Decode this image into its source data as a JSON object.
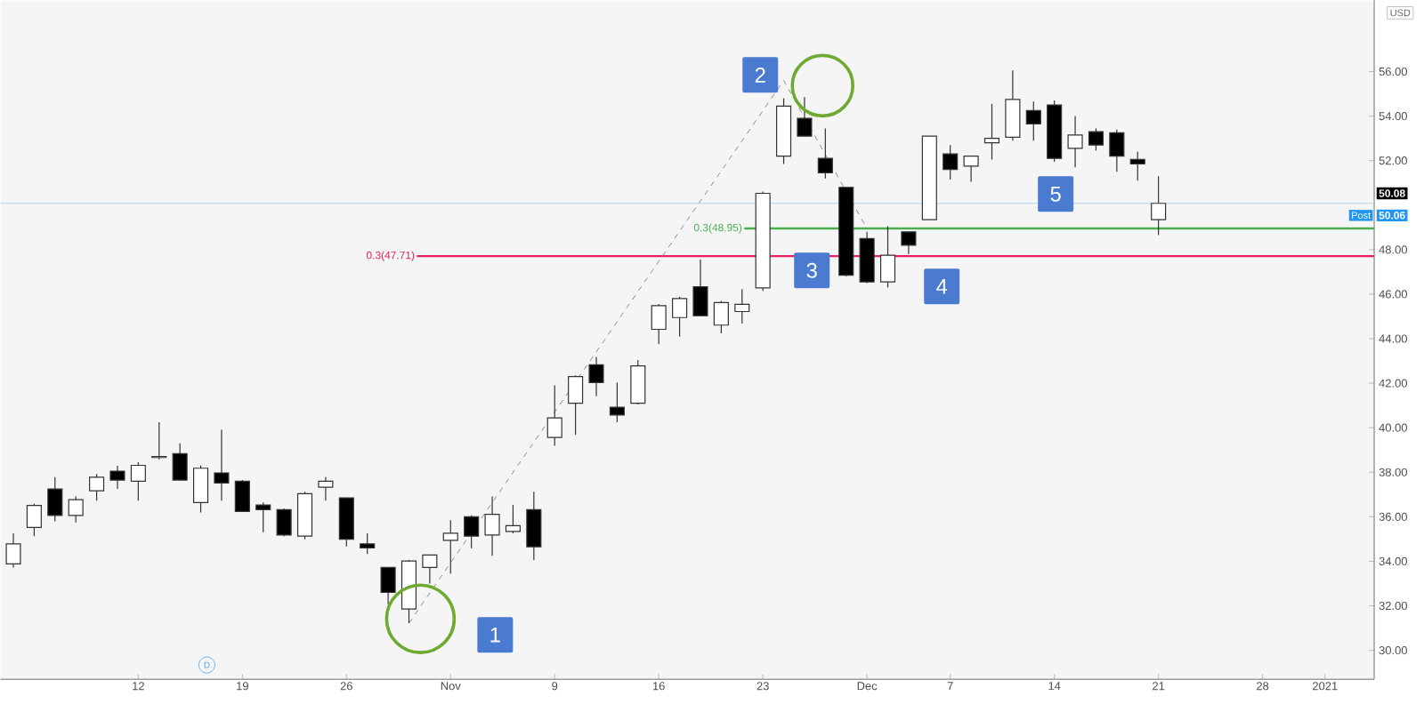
{
  "chart_data": {
    "type": "candlestick",
    "categories": [
      null,
      null,
      null,
      null,
      null,
      null,
      "12",
      null,
      null,
      null,
      null,
      "19",
      null,
      null,
      null,
      null,
      "26",
      null,
      null,
      null,
      null,
      "Nov",
      null,
      null,
      null,
      null,
      "9",
      null,
      null,
      null,
      null,
      "16",
      null,
      null,
      null,
      null,
      "23",
      null,
      null,
      null,
      null,
      "Dec",
      null,
      null,
      null,
      "7",
      null,
      null,
      null,
      null,
      "14",
      null,
      null,
      null,
      null,
      "21",
      null,
      null,
      null,
      null,
      "28",
      null,
      null,
      "2021",
      null,
      null
    ],
    "ohlc": [
      [
        33.88,
        35.26,
        33.72,
        34.78
      ],
      [
        35.52,
        36.59,
        35.13,
        36.51
      ],
      [
        37.25,
        37.78,
        35.79,
        36.06
      ],
      [
        36.06,
        36.91,
        35.74,
        36.77
      ],
      [
        37.17,
        37.92,
        36.72,
        37.78
      ],
      [
        38.05,
        38.29,
        37.25,
        37.65
      ],
      [
        37.6,
        38.45,
        36.72,
        38.31
      ],
      [
        38.66,
        40.25,
        38.58,
        38.71
      ],
      [
        38.84,
        39.3,
        37.65,
        37.65
      ],
      [
        36.64,
        38.31,
        36.19,
        38.18
      ],
      [
        37.97,
        39.91,
        36.72,
        37.52
      ],
      [
        37.6,
        37.65,
        36.24,
        36.24
      ],
      [
        36.53,
        36.64,
        35.31,
        36.32
      ],
      [
        36.32,
        36.37,
        35.13,
        35.18
      ],
      [
        35.13,
        37.12,
        34.99,
        37.04
      ],
      [
        37.33,
        37.78,
        36.72,
        37.6
      ],
      [
        36.85,
        36.85,
        34.67,
        34.99
      ],
      [
        34.78,
        35.26,
        34.33,
        34.6
      ],
      [
        33.72,
        33.72,
        32.07,
        32.6
      ],
      [
        31.86,
        34.06,
        31.22,
        34.01
      ],
      [
        33.72,
        34.28,
        33.0,
        34.28
      ],
      [
        34.94,
        35.84,
        33.45,
        35.26
      ],
      [
        36.0,
        36.06,
        34.59,
        35.13
      ],
      [
        35.18,
        36.91,
        34.25,
        36.11
      ],
      [
        35.34,
        36.53,
        35.26,
        35.6
      ],
      [
        36.32,
        37.12,
        34.06,
        34.65
      ],
      [
        39.56,
        41.9,
        39.19,
        40.44
      ],
      [
        41.1,
        42.35,
        39.69,
        42.3
      ],
      [
        42.83,
        43.17,
        41.42,
        42.03
      ],
      [
        40.92,
        42.03,
        40.25,
        40.57
      ],
      [
        41.1,
        43.04,
        41.05,
        42.78
      ],
      [
        44.42,
        45.56,
        43.76,
        45.48
      ],
      [
        44.95,
        45.88,
        44.1,
        45.8
      ],
      [
        46.33,
        47.56,
        45.01,
        45.03
      ],
      [
        44.61,
        45.7,
        44.24,
        45.62
      ],
      [
        45.22,
        46.23,
        44.69,
        45.54
      ],
      [
        46.28,
        50.61,
        46.15,
        50.53
      ],
      [
        52.2,
        54.8,
        51.85,
        54.45
      ],
      [
        53.9,
        54.85,
        53.1,
        53.1
      ],
      [
        52.1,
        53.45,
        51.2,
        51.45
      ],
      [
        50.8,
        50.8,
        46.8,
        46.85
      ],
      [
        48.5,
        48.8,
        46.5,
        46.55
      ],
      [
        46.55,
        49.05,
        46.3,
        47.75
      ],
      [
        48.8,
        48.8,
        47.8,
        48.2
      ],
      [
        49.35,
        53.1,
        49.35,
        53.1
      ],
      [
        52.3,
        52.7,
        51.15,
        51.6
      ],
      [
        51.75,
        52.2,
        51.05,
        52.2
      ],
      [
        52.8,
        54.55,
        52.05,
        53.0
      ],
      [
        53.05,
        56.05,
        52.9,
        54.75
      ],
      [
        54.25,
        54.65,
        52.9,
        53.65
      ],
      [
        54.5,
        54.7,
        51.95,
        52.1
      ],
      [
        52.55,
        54.0,
        51.7,
        53.15
      ],
      [
        53.3,
        53.45,
        52.45,
        52.7
      ],
      [
        53.25,
        53.4,
        51.5,
        52.2
      ],
      [
        52.05,
        52.4,
        51.1,
        51.85
      ],
      [
        49.35,
        51.3,
        48.65,
        50.08
      ],
      null,
      null,
      null,
      null,
      null,
      null,
      null,
      null,
      null,
      null
    ],
    "series": [
      {
        "type": "line",
        "line_style": "dashed",
        "color": "#8c8c8c",
        "values": [
          null,
          null,
          null,
          null,
          null,
          null,
          null,
          null,
          null,
          null,
          null,
          null,
          null,
          null,
          null,
          null,
          null,
          null,
          null,
          31.22,
          null,
          null,
          null,
          null,
          null,
          null,
          null,
          null,
          null,
          null,
          null,
          null,
          null,
          null,
          null,
          null,
          null,
          55.6,
          null,
          null,
          null,
          48.95,
          null,
          null,
          null,
          null,
          null,
          null,
          null,
          null,
          null,
          null,
          null,
          null,
          null,
          null,
          null,
          null,
          null,
          null,
          null,
          null,
          null,
          null,
          null,
          null
        ]
      }
    ],
    "ylim": [
      28.7,
      59.2
    ],
    "yticks": [
      {
        "value": 30,
        "label": "30.00"
      },
      {
        "value": 32,
        "label": "32.00"
      },
      {
        "value": 34,
        "label": "34.00"
      },
      {
        "value": 36,
        "label": "36.00"
      },
      {
        "value": 38,
        "label": "38.00"
      },
      {
        "value": 40,
        "label": "40.00"
      },
      {
        "value": 42,
        "label": "42.00"
      },
      {
        "value": 44,
        "label": "44.00"
      },
      {
        "value": 46,
        "label": "46.00"
      },
      {
        "value": 48,
        "label": "48.00"
      },
      {
        "value": 52,
        "label": "52.00"
      },
      {
        "value": 54,
        "label": "54.00"
      },
      {
        "value": 56,
        "label": "56.00"
      }
    ],
    "ref_lines": [
      {
        "axis": "y",
        "value": 47.71,
        "label": "0.3(47.71)",
        "color": "#e91e63"
      },
      {
        "axis": "y",
        "value": 48.95,
        "label": "0.3(48.95)",
        "color": "#4caf50"
      },
      {
        "axis": "y",
        "value": 50.08,
        "label": "50.08",
        "color": "#b8d3f0"
      }
    ],
    "annotations": [
      "1",
      "2",
      "3",
      "4",
      "5",
      "D",
      "USD",
      "Post",
      "50.06"
    ]
  }
}
